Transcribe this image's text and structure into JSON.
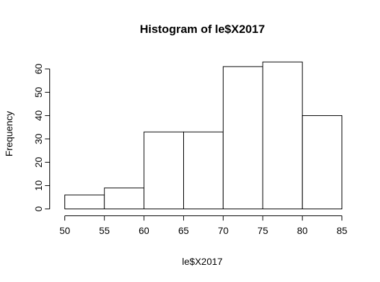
{
  "chart_data": {
    "type": "bar",
    "subtype": "histogram",
    "title": "Histogram of le$X2017",
    "xlabel": "le$X2017",
    "ylabel": "Frequency",
    "bins": [
      {
        "start": 50,
        "end": 55,
        "count": 6
      },
      {
        "start": 55,
        "end": 60,
        "count": 9
      },
      {
        "start": 60,
        "end": 65,
        "count": 33
      },
      {
        "start": 65,
        "end": 70,
        "count": 33
      },
      {
        "start": 70,
        "end": 75,
        "count": 61
      },
      {
        "start": 75,
        "end": 80,
        "count": 63
      },
      {
        "start": 80,
        "end": 85,
        "count": 40
      }
    ],
    "xticks": [
      "50",
      "55",
      "60",
      "65",
      "70",
      "75",
      "80",
      "85"
    ],
    "yticks": [
      "0",
      "10",
      "20",
      "30",
      "40",
      "50",
      "60"
    ],
    "xlim": [
      50,
      85
    ],
    "ylim": [
      0,
      63
    ],
    "grid": false,
    "legend": "none"
  }
}
